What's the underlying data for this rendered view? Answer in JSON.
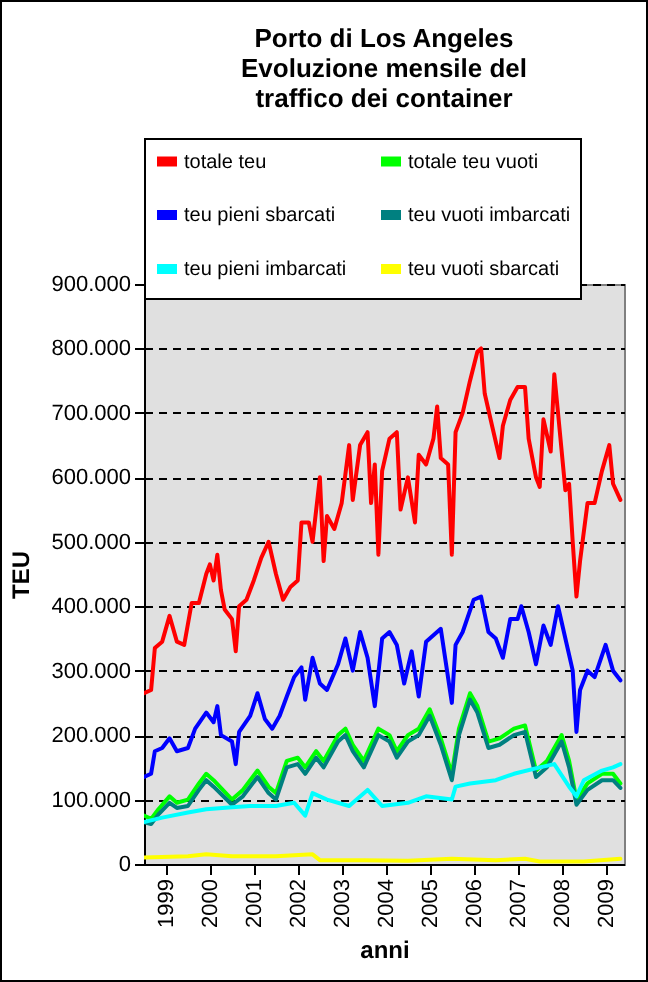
{
  "chart_data": {
    "type": "line",
    "title": [
      "Porto di Los Angeles",
      "Evoluzione mensile del",
      "traffico dei container"
    ],
    "xlabel": "anni",
    "ylabel": "TEU",
    "xlim": [
      "1999-01",
      "2009-12"
    ],
    "xticks": [
      {
        "value": "1999-07",
        "label": "1999"
      },
      {
        "value": "2000-07",
        "label": "2000"
      },
      {
        "value": "2001-07",
        "label": "2001"
      },
      {
        "value": "2002-07",
        "label": "2002"
      },
      {
        "value": "2003-07",
        "label": "2003"
      },
      {
        "value": "2004-07",
        "label": "2004"
      },
      {
        "value": "2005-07",
        "label": "2005"
      },
      {
        "value": "2006-07",
        "label": "2006"
      },
      {
        "value": "2007-07",
        "label": "2007"
      },
      {
        "value": "2008-07",
        "label": "2008"
      },
      {
        "value": "2009-07",
        "label": "2009"
      }
    ],
    "ylim": [
      0,
      900000
    ],
    "yticks": [
      {
        "value": 0,
        "label": "0"
      },
      {
        "value": 100000,
        "label": "100.000"
      },
      {
        "value": 200000,
        "label": "200.000"
      },
      {
        "value": 300000,
        "label": "300.000"
      },
      {
        "value": 400000,
        "label": "400.000"
      },
      {
        "value": 500000,
        "label": "500.000"
      },
      {
        "value": 600000,
        "label": "600.000"
      },
      {
        "value": 700000,
        "label": "700.000"
      },
      {
        "value": 800000,
        "label": "800.000"
      },
      {
        "value": 900000,
        "label": "900.000"
      }
    ],
    "grid": "y",
    "legend": "top",
    "line_style": "solid",
    "marker": "none",
    "series": [
      {
        "name": "totale teu",
        "color": "#ff0000",
        "x": [
          "1999-01",
          "1999-03",
          "1999-04",
          "1999-06",
          "1999-08",
          "1999-10",
          "1999-12",
          "2000-02",
          "2000-04",
          "2000-06",
          "2000-07",
          "2000-08",
          "2000-09",
          "2000-10",
          "2000-11",
          "2001-01",
          "2001-02",
          "2001-03",
          "2001-05",
          "2001-07",
          "2001-09",
          "2001-11",
          "2002-01",
          "2002-03",
          "2002-05",
          "2002-07",
          "2002-08",
          "2002-10",
          "2002-11",
          "2003-01",
          "2003-02",
          "2003-03",
          "2003-05",
          "2003-07",
          "2003-09",
          "2003-10",
          "2003-12",
          "2004-02",
          "2004-03",
          "2004-04",
          "2004-05",
          "2004-06",
          "2004-08",
          "2004-10",
          "2004-11",
          "2005-01",
          "2005-03",
          "2005-04",
          "2005-06",
          "2005-08",
          "2005-09",
          "2005-10",
          "2005-12",
          "2006-01",
          "2006-02",
          "2006-04",
          "2006-06",
          "2006-08",
          "2006-09",
          "2006-10",
          "2006-12",
          "2007-02",
          "2007-03",
          "2007-05",
          "2007-07",
          "2007-09",
          "2007-10",
          "2007-12",
          "2008-01",
          "2008-02",
          "2008-04",
          "2008-05",
          "2008-06",
          "2008-08",
          "2008-09",
          "2008-10",
          "2008-11",
          "2008-12",
          "2009-02",
          "2009-04",
          "2009-06",
          "2009-08",
          "2009-09",
          "2009-11"
        ],
        "values": [
          265000,
          270000,
          335000,
          345000,
          385000,
          345000,
          340000,
          405000,
          405000,
          450000,
          465000,
          440000,
          480000,
          425000,
          395000,
          380000,
          330000,
          400000,
          410000,
          440000,
          475000,
          500000,
          450000,
          410000,
          430000,
          440000,
          530000,
          530000,
          500000,
          600000,
          470000,
          540000,
          520000,
          560000,
          650000,
          565000,
          650000,
          670000,
          560000,
          620000,
          480000,
          610000,
          660000,
          670000,
          550000,
          600000,
          530000,
          635000,
          620000,
          660000,
          710000,
          630000,
          620000,
          480000,
          670000,
          700000,
          750000,
          795000,
          800000,
          730000,
          680000,
          630000,
          680000,
          720000,
          740000,
          740000,
          660000,
          600000,
          585000,
          690000,
          640000,
          760000,
          700000,
          580000,
          590000,
          500000,
          415000,
          470000,
          560000,
          560000,
          610000,
          650000,
          590000,
          565000
        ]
      },
      {
        "name": "totale teu vuoti",
        "color": "#00ff00",
        "x": [
          "1999-01",
          "1999-03",
          "1999-05",
          "1999-08",
          "1999-10",
          "2000-01",
          "2000-04",
          "2000-06",
          "2000-08",
          "2001-01",
          "2001-04",
          "2001-08",
          "2001-11",
          "2002-01",
          "2002-04",
          "2002-07",
          "2002-09",
          "2002-12",
          "2003-02",
          "2003-06",
          "2003-08",
          "2003-10",
          "2004-01",
          "2004-05",
          "2004-08",
          "2004-10",
          "2005-01",
          "2005-04",
          "2005-07",
          "2005-10",
          "2006-01",
          "2006-03",
          "2006-06",
          "2006-08",
          "2006-11",
          "2007-02",
          "2007-06",
          "2007-09",
          "2007-12",
          "2008-03",
          "2008-07",
          "2008-09",
          "2008-11",
          "2009-02",
          "2009-06",
          "2009-09",
          "2009-11"
        ],
        "values": [
          75000,
          70000,
          85000,
          105000,
          95000,
          100000,
          125000,
          140000,
          130000,
          100000,
          115000,
          145000,
          120000,
          110000,
          160000,
          165000,
          150000,
          175000,
          160000,
          200000,
          210000,
          185000,
          160000,
          210000,
          200000,
          175000,
          200000,
          210000,
          240000,
          195000,
          140000,
          210000,
          265000,
          245000,
          190000,
          195000,
          210000,
          215000,
          145000,
          160000,
          200000,
          160000,
          100000,
          125000,
          140000,
          140000,
          125000
        ]
      },
      {
        "name": "teu pieni sbarcati",
        "color": "#0000ff",
        "x": [
          "1999-01",
          "1999-03",
          "1999-04",
          "1999-06",
          "1999-08",
          "1999-10",
          "2000-01",
          "2000-03",
          "2000-06",
          "2000-08",
          "2000-09",
          "2000-10",
          "2001-01",
          "2001-02",
          "2001-03",
          "2001-06",
          "2001-08",
          "2001-10",
          "2001-12",
          "2002-02",
          "2002-04",
          "2002-06",
          "2002-08",
          "2002-09",
          "2002-11",
          "2003-01",
          "2003-03",
          "2003-06",
          "2003-08",
          "2003-10",
          "2003-12",
          "2004-02",
          "2004-04",
          "2004-06",
          "2004-08",
          "2004-10",
          "2004-12",
          "2005-02",
          "2005-04",
          "2005-06",
          "2005-08",
          "2005-10",
          "2006-01",
          "2006-02",
          "2006-04",
          "2006-07",
          "2006-09",
          "2006-11",
          "2007-01",
          "2007-03",
          "2007-05",
          "2007-07",
          "2007-08",
          "2007-10",
          "2007-12",
          "2008-02",
          "2008-04",
          "2008-06",
          "2008-08",
          "2008-10",
          "2008-11",
          "2008-12",
          "2009-02",
          "2009-04",
          "2009-07",
          "2009-09",
          "2009-11"
        ],
        "values": [
          135000,
          140000,
          175000,
          180000,
          195000,
          175000,
          180000,
          210000,
          235000,
          220000,
          245000,
          200000,
          190000,
          155000,
          205000,
          230000,
          265000,
          225000,
          210000,
          230000,
          260000,
          290000,
          305000,
          255000,
          320000,
          280000,
          270000,
          310000,
          350000,
          300000,
          360000,
          320000,
          245000,
          350000,
          360000,
          340000,
          280000,
          330000,
          260000,
          345000,
          355000,
          365000,
          250000,
          340000,
          360000,
          410000,
          415000,
          360000,
          350000,
          320000,
          380000,
          380000,
          400000,
          360000,
          310000,
          370000,
          340000,
          400000,
          350000,
          300000,
          205000,
          270000,
          300000,
          290000,
          340000,
          300000,
          285000
        ]
      },
      {
        "name": "teu vuoti imbarcati",
        "color": "#008080",
        "x": [
          "1999-01",
          "1999-03",
          "1999-05",
          "1999-08",
          "1999-10",
          "2000-01",
          "2000-04",
          "2000-06",
          "2000-08",
          "2001-01",
          "2001-04",
          "2001-08",
          "2001-11",
          "2002-01",
          "2002-04",
          "2002-07",
          "2002-09",
          "2002-12",
          "2003-02",
          "2003-06",
          "2003-08",
          "2003-10",
          "2004-01",
          "2004-05",
          "2004-08",
          "2004-10",
          "2005-01",
          "2005-04",
          "2005-07",
          "2005-10",
          "2006-01",
          "2006-03",
          "2006-06",
          "2006-08",
          "2006-11",
          "2007-02",
          "2007-06",
          "2007-09",
          "2007-12",
          "2008-03",
          "2008-07",
          "2008-09",
          "2008-11",
          "2009-02",
          "2009-06",
          "2009-09",
          "2009-11"
        ],
        "values": [
          65000,
          62000,
          77000,
          95000,
          87000,
          90000,
          115000,
          130000,
          120000,
          92000,
          105000,
          135000,
          110000,
          100000,
          150000,
          155000,
          140000,
          165000,
          150000,
          190000,
          200000,
          175000,
          150000,
          200000,
          190000,
          165000,
          190000,
          200000,
          230000,
          185000,
          130000,
          200000,
          255000,
          235000,
          180000,
          185000,
          200000,
          205000,
          135000,
          150000,
          190000,
          150000,
          92000,
          115000,
          130000,
          130000,
          118000
        ]
      },
      {
        "name": "teu pieni imbarcati",
        "color": "#00ffff",
        "x": [
          "1999-01",
          "1999-06",
          "2000-01",
          "2000-06",
          "2001-01",
          "2001-06",
          "2002-01",
          "2002-06",
          "2002-09",
          "2002-11",
          "2003-03",
          "2003-09",
          "2004-02",
          "2004-06",
          "2005-01",
          "2005-06",
          "2006-01",
          "2006-02",
          "2006-06",
          "2007-01",
          "2007-06",
          "2008-01",
          "2008-05",
          "2008-09",
          "2008-11",
          "2009-01",
          "2009-06",
          "2009-09",
          "2009-11"
        ],
        "values": [
          65000,
          72000,
          80000,
          85000,
          88000,
          90000,
          90000,
          95000,
          75000,
          110000,
          100000,
          90000,
          115000,
          90000,
          95000,
          105000,
          100000,
          120000,
          125000,
          130000,
          140000,
          150000,
          155000,
          120000,
          105000,
          130000,
          145000,
          150000,
          155000
        ]
      },
      {
        "name": "teu vuoti sbarcati",
        "color": "#ffff00",
        "x": [
          "1999-01",
          "2000-01",
          "2000-06",
          "2001-01",
          "2002-01",
          "2002-11",
          "2003-01",
          "2004-01",
          "2005-01",
          "2006-01",
          "2007-01",
          "2007-09",
          "2008-01",
          "2009-01",
          "2009-11"
        ],
        "values": [
          10000,
          12000,
          15000,
          12000,
          12000,
          15000,
          6000,
          6000,
          5000,
          8000,
          6000,
          8000,
          4000,
          4000,
          8000
        ]
      }
    ]
  }
}
